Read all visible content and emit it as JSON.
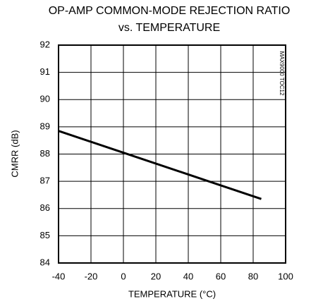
{
  "chart_data": {
    "type": "line",
    "title": "OP-AMP COMMON-MODE REJECTION RATIO",
    "subtitle": "vs. TEMPERATURE",
    "x_label": "TEMPERATURE (°C)",
    "y_label": "CMRR (dB)",
    "annotation": "MAX9000 TOC12",
    "x": [
      -40,
      0,
      40,
      85
    ],
    "series": [
      {
        "name": "CMRR",
        "color": "#000000",
        "values": [
          88.85,
          88.05,
          87.25,
          86.35
        ]
      }
    ],
    "xlim": [
      -40,
      100
    ],
    "xticks": [
      -40,
      -20,
      0,
      20,
      40,
      60,
      80,
      100
    ],
    "ylim": [
      84,
      92
    ],
    "yticks": [
      84,
      85,
      86,
      87,
      88,
      89,
      90,
      91,
      92
    ],
    "grid": true
  }
}
